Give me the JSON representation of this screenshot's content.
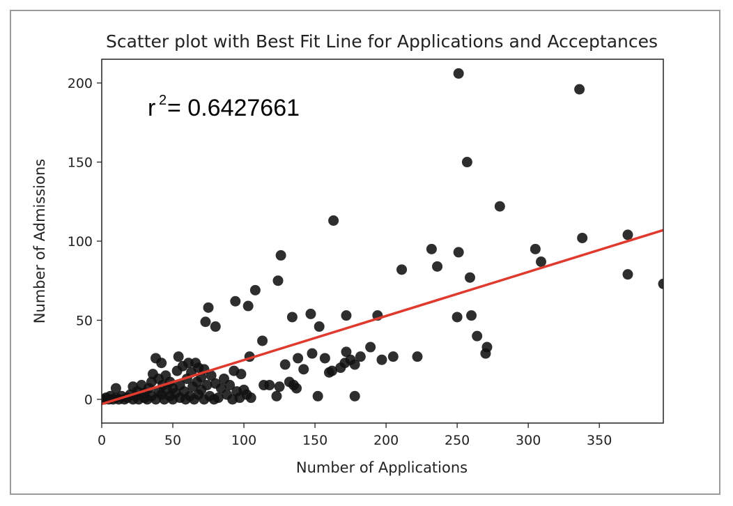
{
  "chart_data": {
    "type": "scatter",
    "title": "Scatter plot with Best Fit Line for Applications and Acceptances",
    "xlabel": "Number of Applications",
    "ylabel": "Number of Admissions",
    "xlim": [
      0,
      395
    ],
    "ylim": [
      -15,
      215
    ],
    "xticks": [
      "0",
      "50",
      "100",
      "150",
      "200",
      "250",
      "300",
      "350"
    ],
    "xtick_values": [
      0,
      50,
      100,
      150,
      200,
      250,
      300,
      350
    ],
    "yticks": [
      "0",
      "50",
      "100",
      "150",
      "200"
    ],
    "ytick_values": [
      0,
      50,
      100,
      150,
      200
    ],
    "annotation": {
      "base": "r",
      "superscript": "2",
      "text": "= 0.6427661"
    },
    "grid": false,
    "point_color": "#111111",
    "fit_color": "#e03a2f",
    "fit_line": {
      "x": [
        0,
        395
      ],
      "y": [
        -3,
        107
      ]
    },
    "points": [
      {
        "x": 1,
        "y": 0
      },
      {
        "x": 2,
        "y": 0
      },
      {
        "x": 3,
        "y": 1
      },
      {
        "x": 5,
        "y": 0
      },
      {
        "x": 6,
        "y": 2
      },
      {
        "x": 8,
        "y": 0
      },
      {
        "x": 10,
        "y": 1
      },
      {
        "x": 10,
        "y": 7
      },
      {
        "x": 12,
        "y": 0
      },
      {
        "x": 14,
        "y": 2
      },
      {
        "x": 16,
        "y": 0
      },
      {
        "x": 18,
        "y": 1
      },
      {
        "x": 20,
        "y": 3
      },
      {
        "x": 22,
        "y": 0
      },
      {
        "x": 22,
        "y": 8
      },
      {
        "x": 24,
        "y": 2
      },
      {
        "x": 25,
        "y": 5
      },
      {
        "x": 26,
        "y": 0
      },
      {
        "x": 28,
        "y": 9
      },
      {
        "x": 30,
        "y": 1
      },
      {
        "x": 30,
        "y": 4
      },
      {
        "x": 32,
        "y": 0
      },
      {
        "x": 33,
        "y": 7
      },
      {
        "x": 35,
        "y": 2
      },
      {
        "x": 35,
        "y": 11
      },
      {
        "x": 36,
        "y": 16
      },
      {
        "x": 38,
        "y": 0
      },
      {
        "x": 38,
        "y": 26
      },
      {
        "x": 40,
        "y": 5
      },
      {
        "x": 40,
        "y": 13
      },
      {
        "x": 42,
        "y": 3
      },
      {
        "x": 42,
        "y": 23
      },
      {
        "x": 43,
        "y": 9
      },
      {
        "x": 44,
        "y": 0
      },
      {
        "x": 45,
        "y": 15
      },
      {
        "x": 46,
        "y": 6
      },
      {
        "x": 48,
        "y": 2
      },
      {
        "x": 48,
        "y": 11
      },
      {
        "x": 50,
        "y": 0
      },
      {
        "x": 50,
        "y": 7
      },
      {
        "x": 52,
        "y": 4
      },
      {
        "x": 53,
        "y": 18
      },
      {
        "x": 54,
        "y": 27
      },
      {
        "x": 55,
        "y": 1
      },
      {
        "x": 55,
        "y": 9
      },
      {
        "x": 57,
        "y": 21
      },
      {
        "x": 58,
        "y": 5
      },
      {
        "x": 59,
        "y": 0
      },
      {
        "x": 60,
        "y": 13
      },
      {
        "x": 61,
        "y": 23
      },
      {
        "x": 62,
        "y": 2
      },
      {
        "x": 63,
        "y": 17
      },
      {
        "x": 64,
        "y": 8
      },
      {
        "x": 65,
        "y": 0
      },
      {
        "x": 66,
        "y": 23
      },
      {
        "x": 67,
        "y": 11
      },
      {
        "x": 68,
        "y": 3
      },
      {
        "x": 68,
        "y": 20
      },
      {
        "x": 70,
        "y": 6
      },
      {
        "x": 70,
        "y": 14
      },
      {
        "x": 72,
        "y": 0
      },
      {
        "x": 72,
        "y": 19
      },
      {
        "x": 73,
        "y": 49
      },
      {
        "x": 74,
        "y": 9
      },
      {
        "x": 75,
        "y": 58
      },
      {
        "x": 76,
        "y": 2
      },
      {
        "x": 77,
        "y": 15
      },
      {
        "x": 79,
        "y": 0
      },
      {
        "x": 80,
        "y": 46
      },
      {
        "x": 80,
        "y": 10
      },
      {
        "x": 82,
        "y": 1
      },
      {
        "x": 84,
        "y": 7
      },
      {
        "x": 86,
        "y": 13
      },
      {
        "x": 88,
        "y": 3
      },
      {
        "x": 90,
        "y": 9
      },
      {
        "x": 92,
        "y": 0
      },
      {
        "x": 93,
        "y": 18
      },
      {
        "x": 94,
        "y": 62
      },
      {
        "x": 95,
        "y": 5
      },
      {
        "x": 97,
        "y": 1
      },
      {
        "x": 98,
        "y": 16
      },
      {
        "x": 100,
        "y": 6
      },
      {
        "x": 102,
        "y": 3
      },
      {
        "x": 103,
        "y": 59
      },
      {
        "x": 104,
        "y": 27
      },
      {
        "x": 105,
        "y": 1
      },
      {
        "x": 108,
        "y": 69
      },
      {
        "x": 113,
        "y": 37
      },
      {
        "x": 114,
        "y": 9
      },
      {
        "x": 118,
        "y": 9
      },
      {
        "x": 123,
        "y": 2
      },
      {
        "x": 124,
        "y": 75
      },
      {
        "x": 125,
        "y": 8
      },
      {
        "x": 126,
        "y": 91
      },
      {
        "x": 129,
        "y": 22
      },
      {
        "x": 132,
        "y": 11
      },
      {
        "x": 134,
        "y": 52
      },
      {
        "x": 135,
        "y": 9
      },
      {
        "x": 137,
        "y": 7
      },
      {
        "x": 138,
        "y": 26
      },
      {
        "x": 142,
        "y": 19
      },
      {
        "x": 147,
        "y": 54
      },
      {
        "x": 148,
        "y": 29
      },
      {
        "x": 152,
        "y": 2
      },
      {
        "x": 153,
        "y": 46
      },
      {
        "x": 157,
        "y": 26
      },
      {
        "x": 160,
        "y": 17
      },
      {
        "x": 162,
        "y": 18
      },
      {
        "x": 163,
        "y": 113
      },
      {
        "x": 168,
        "y": 20
      },
      {
        "x": 171,
        "y": 23
      },
      {
        "x": 172,
        "y": 53
      },
      {
        "x": 172,
        "y": 30
      },
      {
        "x": 175,
        "y": 25
      },
      {
        "x": 178,
        "y": 22
      },
      {
        "x": 178,
        "y": 2
      },
      {
        "x": 182,
        "y": 27
      },
      {
        "x": 189,
        "y": 33
      },
      {
        "x": 194,
        "y": 53
      },
      {
        "x": 197,
        "y": 25
      },
      {
        "x": 205,
        "y": 27
      },
      {
        "x": 211,
        "y": 82
      },
      {
        "x": 222,
        "y": 27
      },
      {
        "x": 232,
        "y": 95
      },
      {
        "x": 236,
        "y": 84
      },
      {
        "x": 250,
        "y": 52
      },
      {
        "x": 251,
        "y": 93
      },
      {
        "x": 251,
        "y": 206
      },
      {
        "x": 257,
        "y": 150
      },
      {
        "x": 259,
        "y": 77
      },
      {
        "x": 260,
        "y": 53
      },
      {
        "x": 264,
        "y": 40
      },
      {
        "x": 270,
        "y": 29
      },
      {
        "x": 271,
        "y": 33
      },
      {
        "x": 280,
        "y": 122
      },
      {
        "x": 305,
        "y": 95
      },
      {
        "x": 309,
        "y": 87
      },
      {
        "x": 336,
        "y": 196
      },
      {
        "x": 338,
        "y": 102
      },
      {
        "x": 370,
        "y": 104
      },
      {
        "x": 370,
        "y": 79
      },
      {
        "x": 395,
        "y": 73
      }
    ]
  }
}
